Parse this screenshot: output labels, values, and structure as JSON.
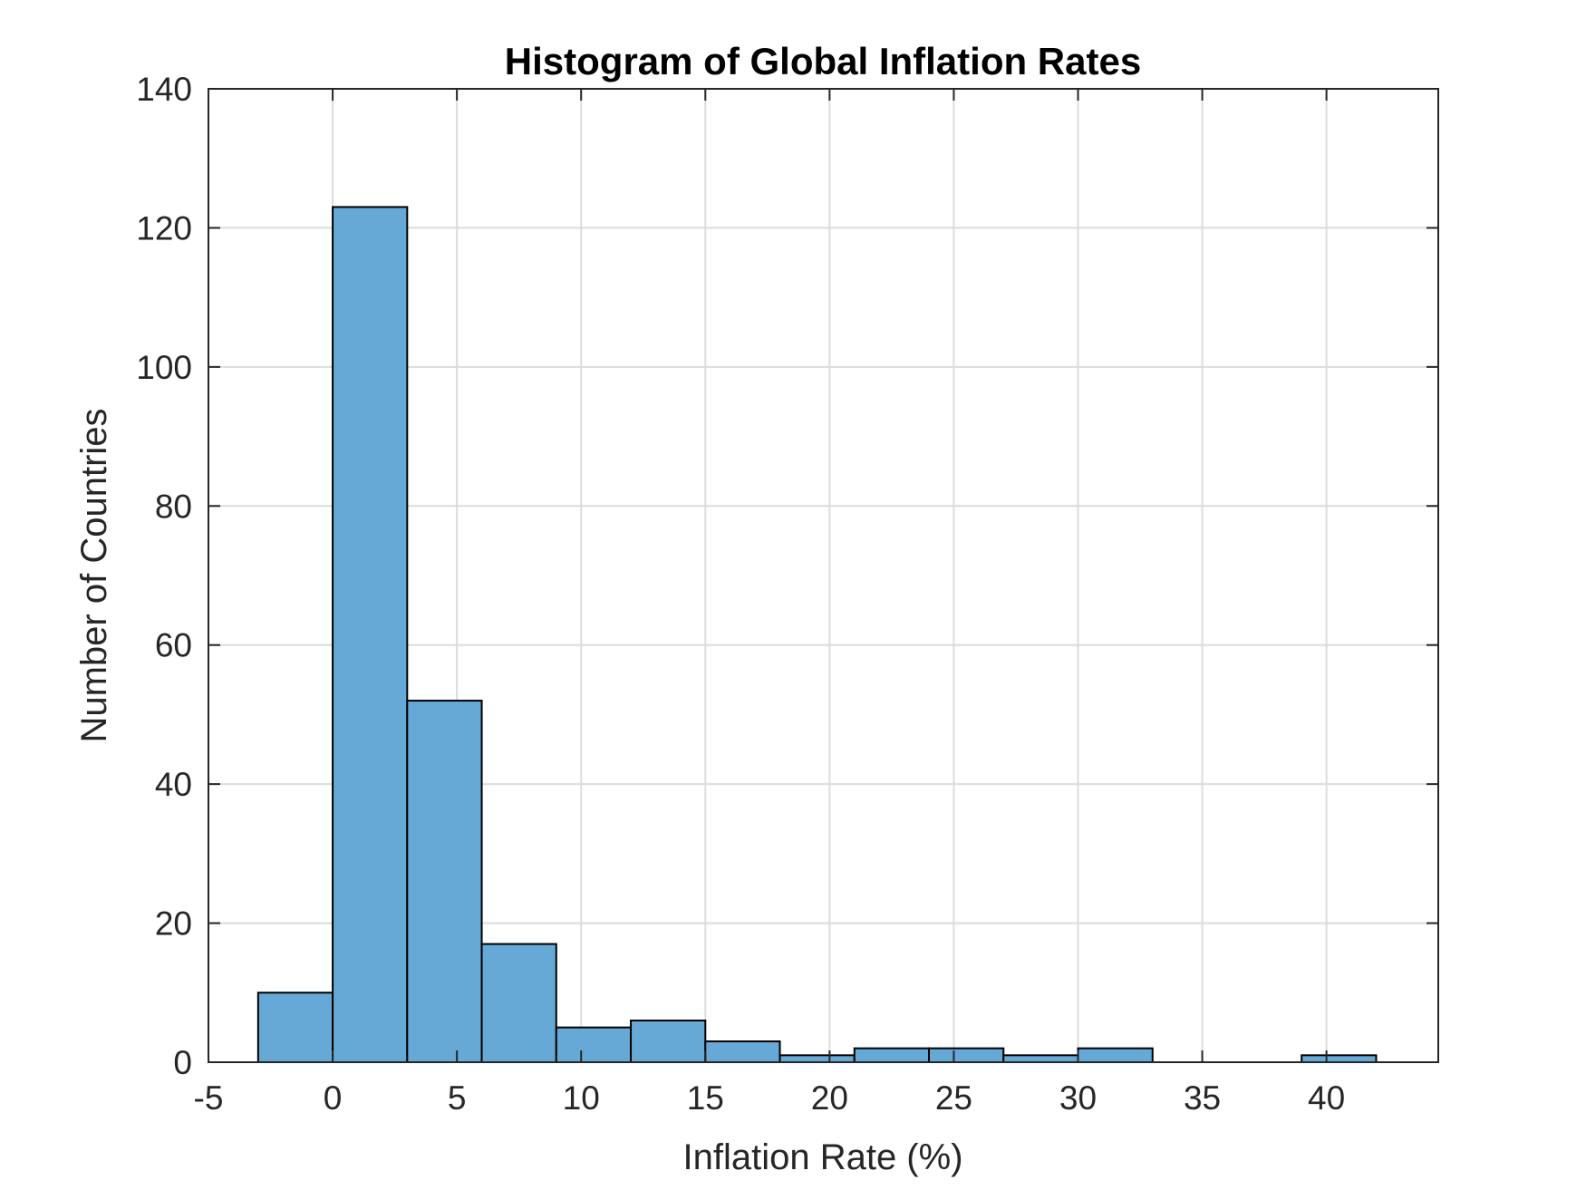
{
  "chart_data": {
    "type": "bar",
    "title": "Histogram of Global Inflation Rates",
    "xlabel": "Inflation Rate (%)",
    "ylabel": "Number of Countries",
    "xlim": [
      -5,
      44.5
    ],
    "ylim": [
      0,
      140
    ],
    "xticks": [
      -5,
      0,
      5,
      10,
      15,
      20,
      25,
      30,
      35,
      40
    ],
    "yticks": [
      0,
      20,
      40,
      60,
      80,
      100,
      120,
      140
    ],
    "grid": true,
    "bar_color": "#66a9d6",
    "bins": [
      {
        "x0": -3,
        "x1": 0,
        "count": 10
      },
      {
        "x0": 0,
        "x1": 3,
        "count": 123
      },
      {
        "x0": 3,
        "x1": 6,
        "count": 52
      },
      {
        "x0": 6,
        "x1": 9,
        "count": 17
      },
      {
        "x0": 9,
        "x1": 12,
        "count": 5
      },
      {
        "x0": 12,
        "x1": 15,
        "count": 6
      },
      {
        "x0": 15,
        "x1": 18,
        "count": 3
      },
      {
        "x0": 18,
        "x1": 21,
        "count": 1
      },
      {
        "x0": 21,
        "x1": 24,
        "count": 2
      },
      {
        "x0": 24,
        "x1": 27,
        "count": 2
      },
      {
        "x0": 27,
        "x1": 30,
        "count": 1
      },
      {
        "x0": 30,
        "x1": 33,
        "count": 2
      },
      {
        "x0": 33,
        "x1": 36,
        "count": 0
      },
      {
        "x0": 36,
        "x1": 39,
        "count": 0
      },
      {
        "x0": 39,
        "x1": 42,
        "count": 1
      }
    ]
  }
}
